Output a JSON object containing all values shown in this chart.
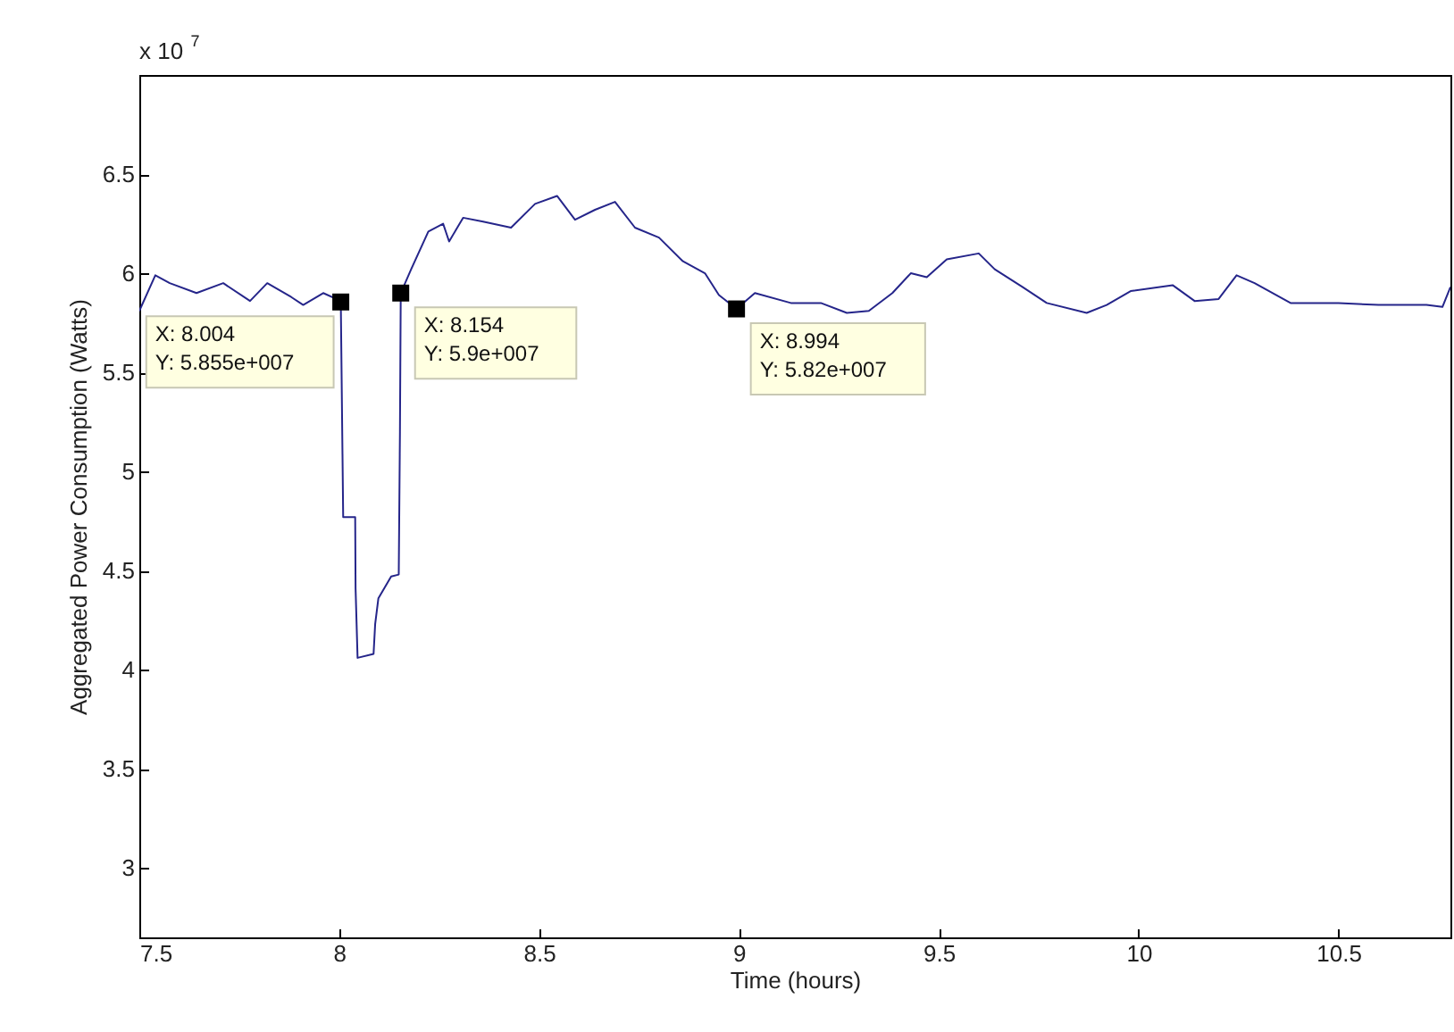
{
  "chart_data": {
    "type": "line",
    "xlabel": "Time (hours)",
    "ylabel": "Aggregated Power Consumption (Watts)",
    "x": [
      7.5,
      7.54,
      7.576,
      7.643,
      7.71,
      7.777,
      7.82,
      7.88,
      7.91,
      7.96,
      8.004,
      8.01,
      8.04,
      8.041,
      8.046,
      8.086,
      8.09,
      8.098,
      8.13,
      8.149,
      8.152,
      8.154,
      8.18,
      8.223,
      8.26,
      8.275,
      8.31,
      8.36,
      8.43,
      8.49,
      8.545,
      8.59,
      8.64,
      8.69,
      8.74,
      8.8,
      8.86,
      8.915,
      8.95,
      8.994,
      9.04,
      9.13,
      9.205,
      9.27,
      9.325,
      9.384,
      9.43,
      9.47,
      9.52,
      9.6,
      9.64,
      9.71,
      9.77,
      9.87,
      9.92,
      9.98,
      10.085,
      10.14,
      10.2,
      10.245,
      10.29,
      10.38,
      10.5,
      10.6,
      10.72,
      10.76,
      10.78
    ],
    "series": [
      {
        "color": "#25258a",
        "values": [
          5.81,
          5.99,
          5.95,
          5.9,
          5.95,
          5.86,
          5.95,
          5.88,
          5.84,
          5.9,
          5.86,
          4.77,
          4.77,
          4.41,
          4.06,
          4.08,
          4.23,
          4.36,
          4.47,
          4.48,
          5.2,
          5.9,
          6.02,
          6.21,
          6.25,
          6.16,
          6.28,
          6.26,
          6.23,
          6.35,
          6.39,
          6.27,
          6.32,
          6.36,
          6.23,
          6.18,
          6.06,
          6.0,
          5.89,
          5.82,
          5.9,
          5.85,
          5.85,
          5.8,
          5.81,
          5.9,
          6.0,
          5.98,
          6.07,
          6.1,
          6.02,
          5.93,
          5.85,
          5.8,
          5.84,
          5.91,
          5.94,
          5.86,
          5.87,
          5.99,
          5.95,
          5.85,
          5.85,
          5.84,
          5.84,
          5.83,
          5.93
        ]
      }
    ],
    "xlim": [
      7.5,
      10.78
    ],
    "xticks": [
      7.5,
      8,
      8.5,
      9,
      9.5,
      10,
      10.5
    ],
    "ylim": [
      2.65,
      7.0
    ],
    "yticks": [
      3,
      3.5,
      4,
      4.5,
      5,
      5.5,
      6,
      6.5
    ],
    "grid": false,
    "marker": "none",
    "line_style": "solid",
    "annotations": [
      "x 10$^{7}$",
      {
        "text": "X: 8.004\nY: 5.855e+007",
        "x": 8.004,
        "y": 5.855
      },
      {
        "text": "X: 8.154\nY: 5.9e+007",
        "x": 8.154,
        "y": 5.9
      },
      {
        "text": "X: 8.994\nY: 5.82e+007",
        "x": 8.994,
        "y": 5.82
      }
    ]
  }
}
